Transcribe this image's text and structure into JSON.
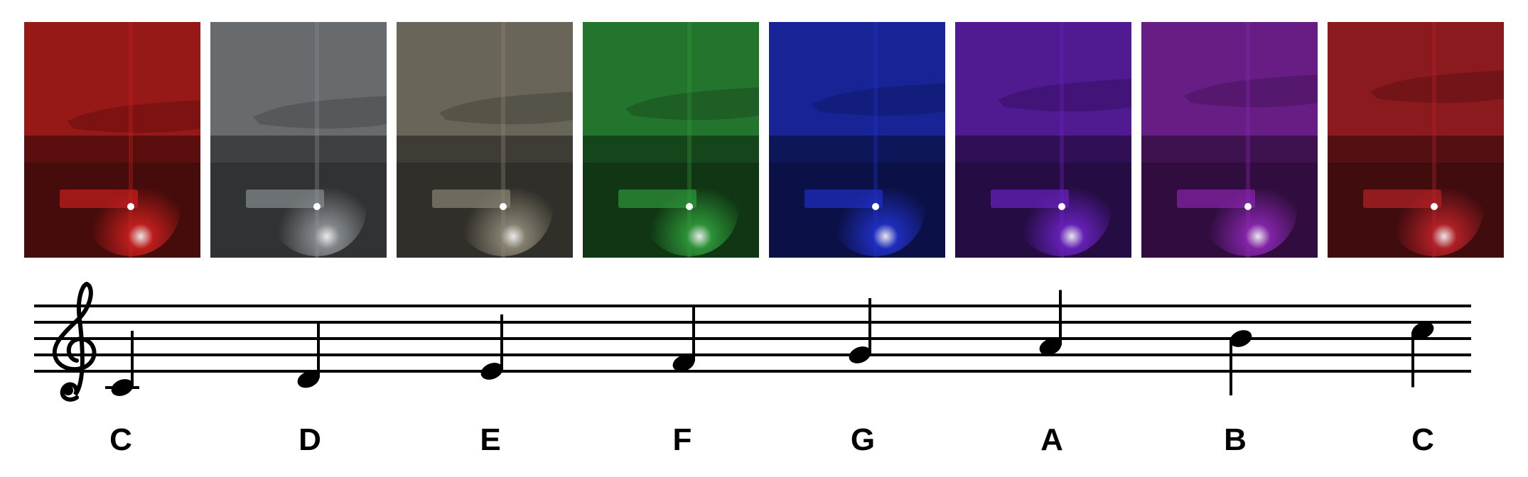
{
  "notes": [
    {
      "name": "C",
      "color": "#c8201e",
      "step": 0
    },
    {
      "name": "D",
      "color": "#8a8f93",
      "step": 1
    },
    {
      "name": "E",
      "color": "#8c8676",
      "step": 2
    },
    {
      "name": "F",
      "color": "#2f9a3a",
      "step": 3
    },
    {
      "name": "G",
      "color": "#2030c8",
      "step": 4
    },
    {
      "name": "A",
      "color": "#6a22c0",
      "step": 5
    },
    {
      "name": "B",
      "color": "#8a26b0",
      "step": 6
    },
    {
      "name": "C",
      "color": "#b82228",
      "step": 7
    }
  ],
  "clef": "treble-clef-icon"
}
